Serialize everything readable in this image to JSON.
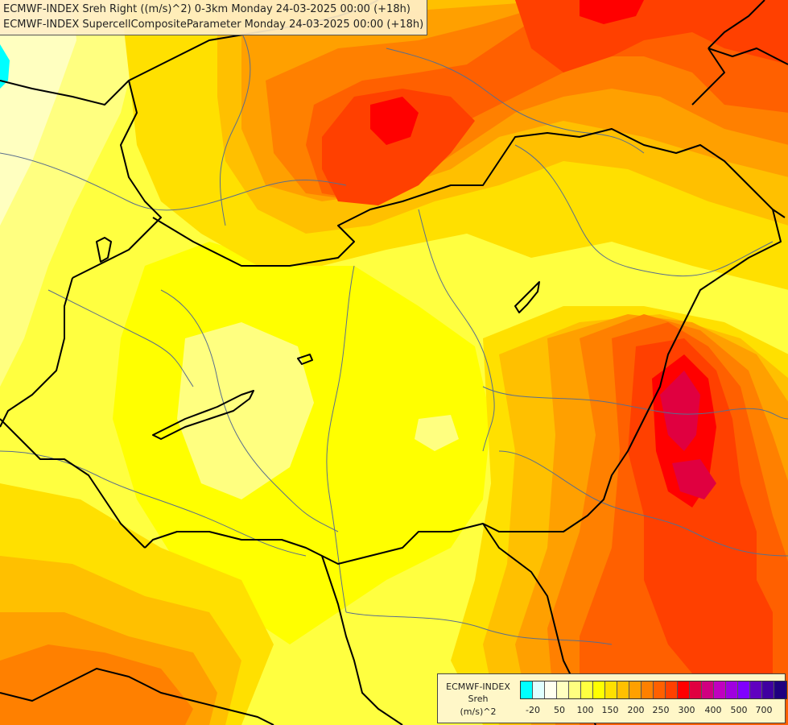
{
  "titles": {
    "line1": "ECMWF-INDEX Sreh Right ((m/s)^2) 0-3km Monday 24-03-2025 00:00 (+18h)",
    "line2": "ECMWF-INDEX SupercellCompositeParameter Monday 24-03-2025 00:00 (+18h)"
  },
  "legend": {
    "source": "ECMWF-INDEX",
    "variable": "Sreh",
    "unit": "(m/s)^2",
    "ticks": [
      "-20",
      "50",
      "100",
      "150",
      "200",
      "250",
      "300",
      "400",
      "500",
      "700"
    ],
    "colors": [
      "#00ffff",
      "#e0ffff",
      "#fffff0",
      "#ffffc0",
      "#ffff80",
      "#ffff40",
      "#ffff00",
      "#ffe000",
      "#ffc000",
      "#ffa000",
      "#ff8000",
      "#ff6000",
      "#ff4000",
      "#ff0000",
      "#e00040",
      "#d00080",
      "#c000c0",
      "#a000e0",
      "#8000ff",
      "#6000c0",
      "#4000a0",
      "#200080"
    ]
  },
  "map_colors": {
    "background": "#ffff40",
    "bright_yellow": "#ffff00",
    "light_yellow": "#ffff80",
    "pale_yellow": "#ffffc0",
    "gold": "#ffe000",
    "amber": "#ffc000",
    "orange": "#ffa000",
    "dark_orange": "#ff8000",
    "red_orange": "#ff6000",
    "red": "#ff4000",
    "crimson": "#ff0000",
    "magenta": "#e00040",
    "cyan": "#00ffff",
    "border_color": "#000000",
    "region_line_color": "#5a6e8c"
  }
}
